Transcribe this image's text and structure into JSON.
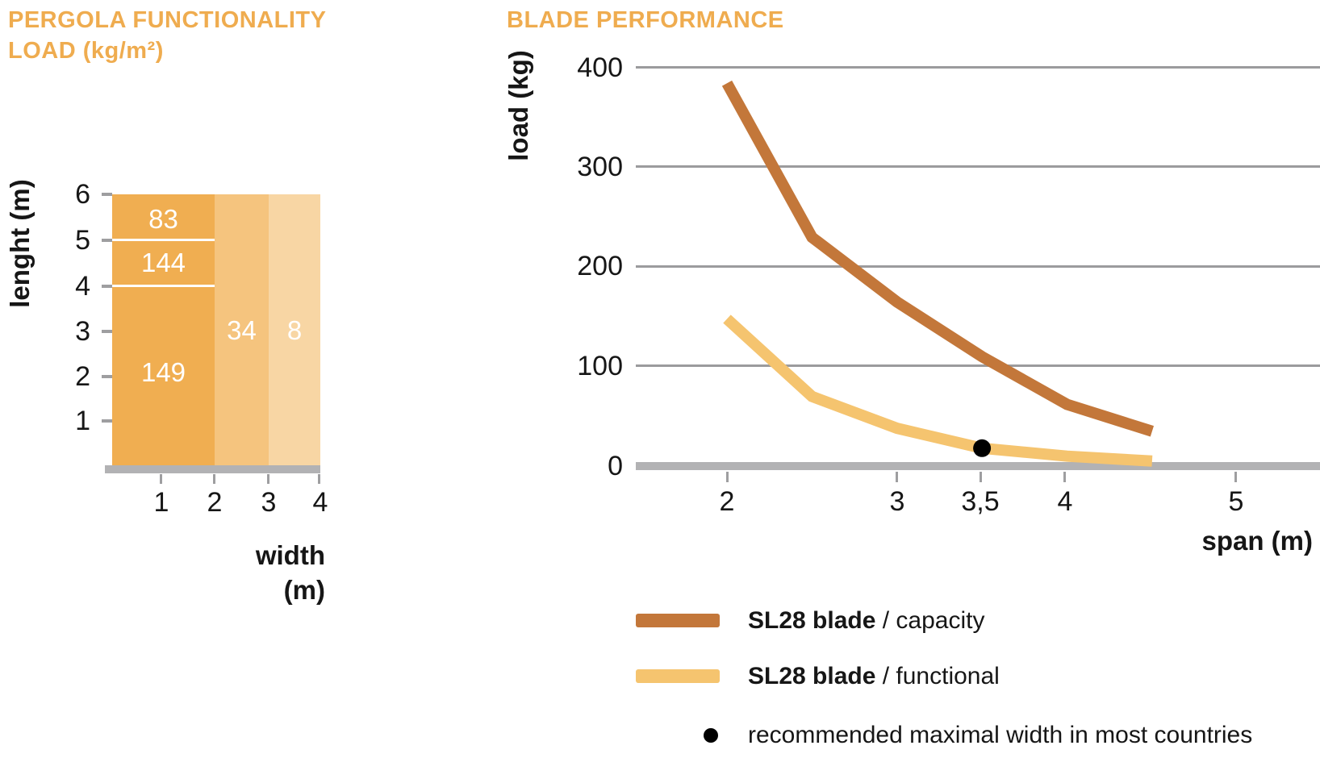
{
  "left_chart": {
    "title_line1": "PERGOLA FUNCTIONALITY",
    "title_line2": "LOAD (kg/m²)",
    "y_axis_label": "lenght (m)",
    "x_axis_label_line1": "width",
    "x_axis_label_line2": "(m)"
  },
  "right_chart": {
    "title": "BLADE PERFORMANCE",
    "y_axis_label": "load (kg)",
    "x_axis_label": "span (m)",
    "legend": [
      {
        "name": "SL28 blade",
        "rest": " / capacity",
        "swatch_color": "#C3773A"
      },
      {
        "name": "SL28 blade",
        "rest": " / functional",
        "swatch_color": "#F5C46F"
      },
      {
        "label": "recommended maximal width in most countries",
        "marker_color": "#000000"
      }
    ]
  },
  "colors": {
    "accent_orange": "#EFAC4F",
    "bar_dark": "#F0AE51",
    "bar_medium": "#F5C47E",
    "bar_light": "#F8D6A4",
    "capacity_line": "#C3773A",
    "functional_line": "#F5C46F",
    "gridline": "#9B9B9D",
    "axis": "#B2B2B4",
    "tick": "#9E9EA0",
    "text": "#161616",
    "value_text": "#FFFFFF"
  },
  "chart_data": [
    {
      "type": "area",
      "title": "PERGOLA FUNCTIONALITY LOAD (kg/m²)",
      "xlabel": "width (m)",
      "ylabel": "lenght (m)",
      "xlim": [
        0,
        4
      ],
      "ylim": [
        0,
        6
      ],
      "grid": false,
      "x_ticks": [
        "1",
        "2",
        "3",
        "4"
      ],
      "y_ticks": [
        "6",
        "5",
        "4",
        "3",
        "2",
        "1"
      ],
      "regions": [
        {
          "label": "83",
          "value": 83,
          "width_range": [
            0,
            2
          ],
          "length_range": [
            5,
            6
          ],
          "color": "#F0AE51"
        },
        {
          "label": "144",
          "value": 144,
          "width_range": [
            0,
            2
          ],
          "length_range": [
            4,
            5
          ],
          "color": "#F0AE51"
        },
        {
          "label": "149",
          "value": 149,
          "width_range": [
            0,
            2
          ],
          "length_range": [
            0,
            4
          ],
          "color": "#F0AE51"
        },
        {
          "label": "34",
          "value": 34,
          "width_range": [
            2,
            3
          ],
          "length_range": [
            0,
            6
          ],
          "color": "#F5C47E"
        },
        {
          "label": "8",
          "value": 8,
          "width_range": [
            3,
            4
          ],
          "length_range": [
            0,
            6
          ],
          "color": "#F8D6A4"
        }
      ]
    },
    {
      "type": "line",
      "title": "BLADE PERFORMANCE",
      "xlabel": "span (m)",
      "ylabel": "load (kg)",
      "xlim": [
        1.5,
        5.5
      ],
      "ylim": [
        0,
        400
      ],
      "grid": true,
      "legend_position": "below",
      "x_tick_labels": [
        "2",
        "3",
        "3,5",
        "4",
        "5"
      ],
      "x_tick_values": [
        2,
        3,
        3.5,
        4,
        5
      ],
      "y_tick_labels": [
        "400",
        "300",
        "200",
        "100",
        "0"
      ],
      "x": [
        2,
        2.5,
        3,
        3.5,
        4,
        4.5
      ],
      "series": [
        {
          "name": "SL28 blade",
          "variant": "capacity",
          "color": "#C3773A",
          "values": [
            385,
            230,
            165,
            110,
            62,
            35
          ]
        },
        {
          "name": "SL28 blade",
          "variant": "functional",
          "color": "#F5C46F",
          "values": [
            148,
            70,
            38,
            18,
            10,
            5
          ]
        }
      ],
      "marker": {
        "x": 3.5,
        "y": 18,
        "color": "#000000",
        "label": "recommended maximal width in most countries"
      }
    }
  ]
}
